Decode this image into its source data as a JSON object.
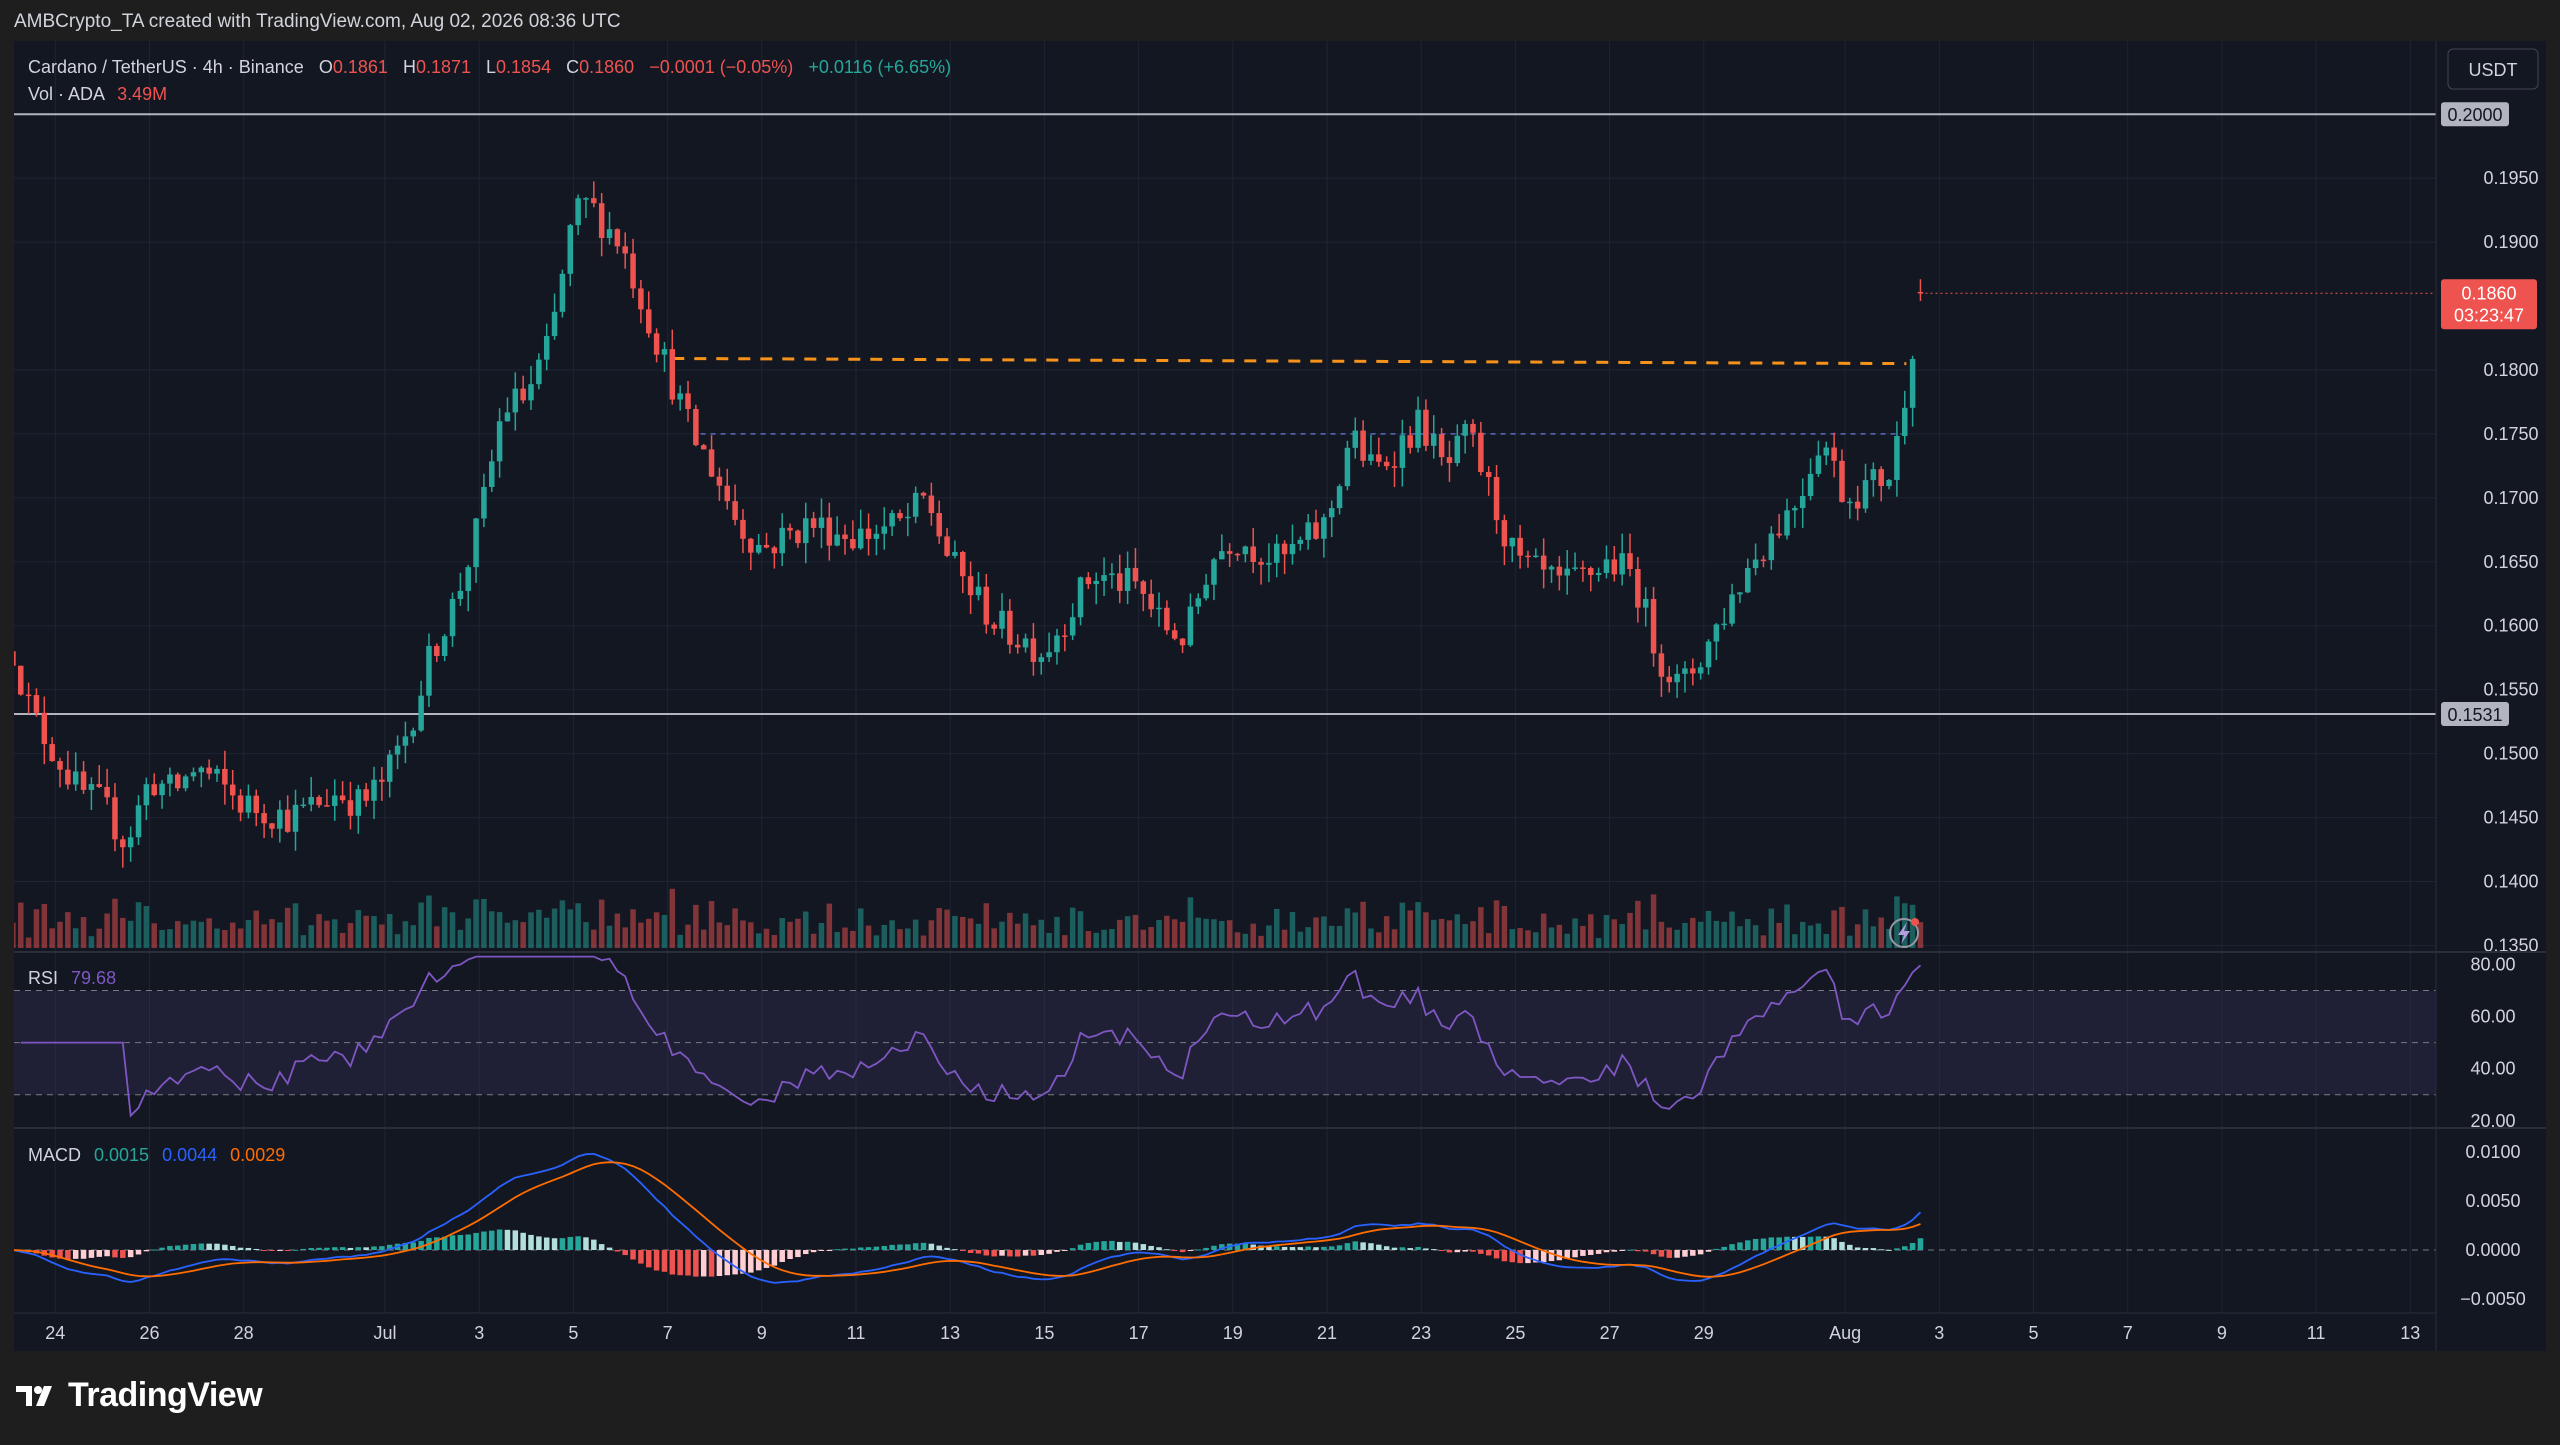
{
  "attribution": "AMBCrypto_TA created with TradingView.com, Aug 02, 2026 08:36 UTC",
  "header": {
    "symbol": "Cardano / TetherUS · 4h · Binance",
    "o_label": "O",
    "o": "0.1861",
    "h_label": "H",
    "h": "0.1871",
    "l_label": "L",
    "l": "0.1854",
    "c_label": "C",
    "c": "0.1860",
    "change": "−0.0001 (−0.05%)",
    "change2": "+0.0116 (+6.65%)",
    "vol_label": "Vol · ADA",
    "vol_value": "3.49M",
    "currency": "USDT"
  },
  "colors": {
    "bg": "#131722",
    "up": "#26a69a",
    "down": "#ef5350",
    "grid": "#1f2433",
    "text": "#d1d4dc",
    "orange": "#f7931a",
    "rsi": "#7e57c2",
    "macd": "#2962ff",
    "signal": "#ff6d00"
  },
  "price_axis": {
    "ticks": [
      "0.1950",
      "0.1900",
      "0.1800",
      "0.1750",
      "0.1700",
      "0.1650",
      "0.1600",
      "0.1550",
      "0.1500",
      "0.1450",
      "0.1400",
      "0.1350"
    ],
    "tick_values": [
      0.195,
      0.19,
      0.18,
      0.175,
      0.17,
      0.165,
      0.16,
      0.155,
      0.15,
      0.145,
      0.14,
      0.135
    ],
    "range": [
      0.1348,
      0.2008
    ],
    "current_price": "0.1860",
    "current_value": 0.186,
    "countdown": "03:23:47"
  },
  "levels": {
    "resistance_label": "0.2000",
    "resistance_value": 0.2,
    "support_label": "0.1531",
    "support_value": 0.1531,
    "orange_dashed_value": 0.1809,
    "purple_dashed_value": 0.175
  },
  "time_axis": {
    "labels": [
      "24",
      "26",
      "28",
      "Jul",
      "3",
      "5",
      "7",
      "9",
      "11",
      "13",
      "15",
      "17",
      "19",
      "21",
      "23",
      "25",
      "27",
      "29",
      "Aug",
      "3",
      "5",
      "7",
      "9",
      "11",
      "13"
    ],
    "label_days": [
      -7,
      -5,
      -3,
      0,
      2,
      4,
      6,
      8,
      10,
      12,
      14,
      16,
      18,
      20,
      22,
      24,
      26,
      28,
      31,
      33,
      35,
      37,
      39,
      41,
      43
    ]
  },
  "rsi": {
    "label": "RSI",
    "value": "79.68",
    "ticks": [
      "80.00",
      "60.00",
      "40.00",
      "20.00"
    ],
    "tick_values": [
      80,
      60,
      40,
      20
    ],
    "upper": 70,
    "middle": 50,
    "lower": 30
  },
  "macd": {
    "label": "MACD",
    "hist": "0.0015",
    "macd": "0.0044",
    "signal": "0.0029",
    "ticks": [
      "0.0100",
      "0.0050",
      "0.0000",
      "−0.0050"
    ],
    "tick_values": [
      0.01,
      0.005,
      0,
      -0.005
    ]
  },
  "chart_data": {
    "type": "candlestick",
    "interval": "4h",
    "x_unit": "days since Jul 1 (2026)",
    "close_anchors_x": [
      -7.9,
      -7.5,
      -7,
      -6.5,
      -6,
      -5.5,
      -5,
      -4.5,
      -4,
      -3,
      -2,
      -1,
      -0.5,
      0,
      0.5,
      1,
      1.5,
      2,
      2.5,
      3,
      3.5,
      4,
      4.3,
      5,
      5.5,
      6,
      6.5,
      7,
      7.5,
      8,
      9,
      10,
      11,
      11.5,
      12,
      13,
      14,
      15,
      16,
      16.5,
      17,
      17.5,
      18,
      19,
      20,
      20.5,
      21,
      22,
      22.5,
      23,
      23.5,
      24,
      25,
      26,
      26.5,
      27,
      27.5,
      28,
      29,
      30,
      30.5,
      31,
      32,
      32.3,
      32.6
    ],
    "close_anchors_y": [
      0.158,
      0.153,
      0.15,
      0.147,
      0.146,
      0.143,
      0.148,
      0.147,
      0.149,
      0.146,
      0.145,
      0.147,
      0.146,
      0.148,
      0.152,
      0.158,
      0.162,
      0.168,
      0.177,
      0.178,
      0.182,
      0.192,
      0.193,
      0.19,
      0.185,
      0.18,
      0.175,
      0.172,
      0.168,
      0.166,
      0.168,
      0.167,
      0.168,
      0.17,
      0.165,
      0.16,
      0.158,
      0.164,
      0.163,
      0.16,
      0.159,
      0.165,
      0.167,
      0.165,
      0.168,
      0.175,
      0.172,
      0.176,
      0.172,
      0.175,
      0.17,
      0.165,
      0.163,
      0.165,
      0.164,
      0.158,
      0.155,
      0.158,
      0.165,
      0.17,
      0.175,
      0.17,
      0.172,
      0.179,
      0.186
    ],
    "volume_unit": "ADA",
    "last_volume": "3.49M"
  }
}
